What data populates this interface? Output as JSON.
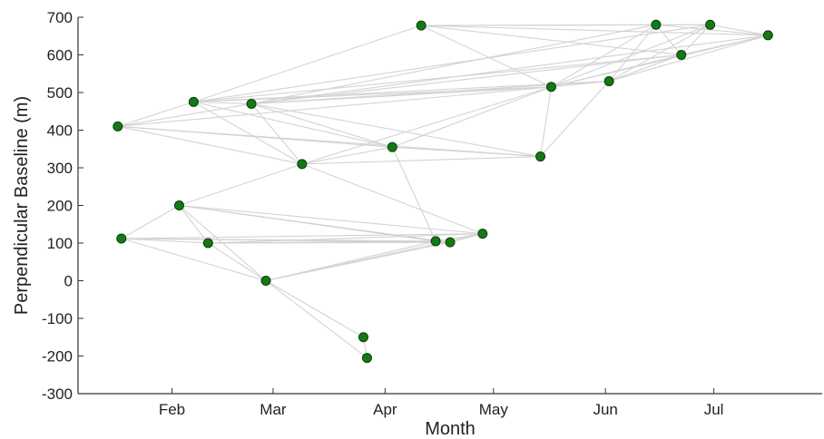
{
  "chart_data": {
    "type": "scatter",
    "xlabel": "Month",
    "ylabel": "Perpendicular Baseline (m)",
    "x_tick_labels": [
      "Feb",
      "Mar",
      "Apr",
      "May",
      "Jun",
      "Jul"
    ],
    "y_tick_labels": [
      "-300",
      "-200",
      "-100",
      "0",
      "100",
      "200",
      "300",
      "400",
      "500",
      "600",
      "700"
    ],
    "y_ticks": [
      -300,
      -200,
      -100,
      0,
      100,
      200,
      300,
      400,
      500,
      600,
      700
    ],
    "ylim": [
      -300,
      700
    ],
    "xlim": [
      "2015-01-06",
      "2015-07-31"
    ],
    "grid": false,
    "colors": {
      "point_fill": "#137a13",
      "point_edge": "#0a3d0a",
      "edge_line": "#d3d3d3",
      "axis": "#333333"
    },
    "points": [
      {
        "id": "P1",
        "date": "2015-01-17",
        "baseline": 410
      },
      {
        "id": "P2",
        "date": "2015-01-18",
        "baseline": 112
      },
      {
        "id": "P3",
        "date": "2015-02-03",
        "baseline": 200
      },
      {
        "id": "P4",
        "date": "2015-02-07",
        "baseline": 475
      },
      {
        "id": "P5",
        "date": "2015-02-11",
        "baseline": 100
      },
      {
        "id": "P6",
        "date": "2015-02-23",
        "baseline": 470
      },
      {
        "id": "P7",
        "date": "2015-02-27",
        "baseline": 0
      },
      {
        "id": "P8",
        "date": "2015-03-09",
        "baseline": 310
      },
      {
        "id": "P9",
        "date": "2015-03-26",
        "baseline": -150
      },
      {
        "id": "P10",
        "date": "2015-03-27",
        "baseline": -205
      },
      {
        "id": "P11",
        "date": "2015-04-03",
        "baseline": 355
      },
      {
        "id": "P12",
        "date": "2015-04-11",
        "baseline": 678
      },
      {
        "id": "P13",
        "date": "2015-04-15",
        "baseline": 105
      },
      {
        "id": "P14",
        "date": "2015-04-19",
        "baseline": 102
      },
      {
        "id": "P15",
        "date": "2015-04-28",
        "baseline": 125
      },
      {
        "id": "P16",
        "date": "2015-05-14",
        "baseline": 330
      },
      {
        "id": "P17",
        "date": "2015-05-17",
        "baseline": 515
      },
      {
        "id": "P18",
        "date": "2015-06-02",
        "baseline": 530
      },
      {
        "id": "P19",
        "date": "2015-06-15",
        "baseline": 680
      },
      {
        "id": "P20",
        "date": "2015-06-22",
        "baseline": 600
      },
      {
        "id": "P21",
        "date": "2015-06-30",
        "baseline": 680
      },
      {
        "id": "P22",
        "date": "2015-07-16",
        "baseline": 652
      }
    ],
    "connections": [
      [
        "P1",
        "P4"
      ],
      [
        "P1",
        "P6"
      ],
      [
        "P1",
        "P8"
      ],
      [
        "P1",
        "P11"
      ],
      [
        "P1",
        "P16"
      ],
      [
        "P1",
        "P17"
      ],
      [
        "P4",
        "P6"
      ],
      [
        "P4",
        "P8"
      ],
      [
        "P4",
        "P11"
      ],
      [
        "P4",
        "P12"
      ],
      [
        "P4",
        "P17"
      ],
      [
        "P4",
        "P18"
      ],
      [
        "P4",
        "P20"
      ],
      [
        "P4",
        "P21"
      ],
      [
        "P6",
        "P8"
      ],
      [
        "P6",
        "P11"
      ],
      [
        "P6",
        "P16"
      ],
      [
        "P6",
        "P17"
      ],
      [
        "P6",
        "P18"
      ],
      [
        "P6",
        "P19"
      ],
      [
        "P6",
        "P20"
      ],
      [
        "P6",
        "P22"
      ],
      [
        "P8",
        "P11"
      ],
      [
        "P8",
        "P15"
      ],
      [
        "P8",
        "P16"
      ],
      [
        "P8",
        "P17"
      ],
      [
        "P8",
        "P3"
      ],
      [
        "P11",
        "P17"
      ],
      [
        "P11",
        "P13"
      ],
      [
        "P11",
        "P16"
      ],
      [
        "P12",
        "P17"
      ],
      [
        "P12",
        "P19"
      ],
      [
        "P12",
        "P20"
      ],
      [
        "P12",
        "P21"
      ],
      [
        "P12",
        "P22"
      ],
      [
        "P16",
        "P17"
      ],
      [
        "P16",
        "P18"
      ],
      [
        "P17",
        "P18"
      ],
      [
        "P17",
        "P19"
      ],
      [
        "P17",
        "P20"
      ],
      [
        "P17",
        "P21"
      ],
      [
        "P17",
        "P22"
      ],
      [
        "P18",
        "P19"
      ],
      [
        "P18",
        "P20"
      ],
      [
        "P18",
        "P21"
      ],
      [
        "P18",
        "P22"
      ],
      [
        "P19",
        "P20"
      ],
      [
        "P19",
        "P21"
      ],
      [
        "P19",
        "P22"
      ],
      [
        "P20",
        "P21"
      ],
      [
        "P20",
        "P22"
      ],
      [
        "P21",
        "P22"
      ],
      [
        "P2",
        "P3"
      ],
      [
        "P2",
        "P5"
      ],
      [
        "P2",
        "P7"
      ],
      [
        "P2",
        "P13"
      ],
      [
        "P2",
        "P14"
      ],
      [
        "P2",
        "P15"
      ],
      [
        "P3",
        "P5"
      ],
      [
        "P3",
        "P7"
      ],
      [
        "P3",
        "P13"
      ],
      [
        "P3",
        "P14"
      ],
      [
        "P3",
        "P15"
      ],
      [
        "P5",
        "P7"
      ],
      [
        "P5",
        "P13"
      ],
      [
        "P5",
        "P14"
      ],
      [
        "P5",
        "P15"
      ],
      [
        "P7",
        "P13"
      ],
      [
        "P7",
        "P14"
      ],
      [
        "P7",
        "P15"
      ],
      [
        "P7",
        "P9"
      ],
      [
        "P7",
        "P10"
      ],
      [
        "P9",
        "P10"
      ],
      [
        "P13",
        "P14"
      ],
      [
        "P13",
        "P15"
      ],
      [
        "P14",
        "P15"
      ]
    ]
  }
}
